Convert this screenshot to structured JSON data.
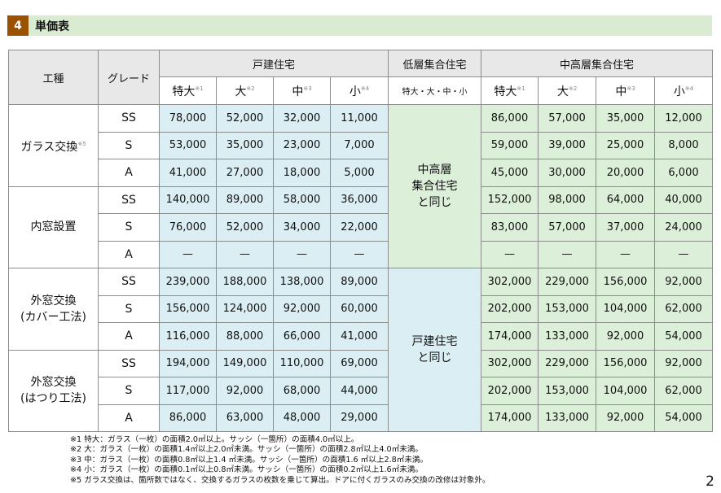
{
  "section": {
    "number": "4",
    "title": "単価表"
  },
  "header": {
    "work": "工種",
    "grade": "グレード",
    "detached": "戸建住宅",
    "lowrise": "低層集合住宅",
    "highrise": "中高層集合住宅",
    "lowrise_sizes": "特大・大・中・小",
    "sizes": [
      {
        "label": "特大",
        "note": "※1"
      },
      {
        "label": "大",
        "note": "※2"
      },
      {
        "label": "中",
        "note": "※3"
      },
      {
        "label": "小",
        "note": "※4"
      }
    ]
  },
  "lowrise_notes": [
    "中高層\n集合住宅\nと同じ",
    "戸建住宅\nと同じ"
  ],
  "groups": [
    {
      "name": "ガラス交換",
      "note": "※5",
      "rows": [
        {
          "grade": "SS",
          "detached": [
            "78,000",
            "52,000",
            "32,000",
            "11,000"
          ],
          "highrise": [
            "86,000",
            "57,000",
            "35,000",
            "12,000"
          ]
        },
        {
          "grade": "S",
          "detached": [
            "53,000",
            "35,000",
            "23,000",
            "7,000"
          ],
          "highrise": [
            "59,000",
            "39,000",
            "25,000",
            "8,000"
          ]
        },
        {
          "grade": "A",
          "detached": [
            "41,000",
            "27,000",
            "18,000",
            "5,000"
          ],
          "highrise": [
            "45,000",
            "30,000",
            "20,000",
            "6,000"
          ]
        }
      ]
    },
    {
      "name": "内窓設置",
      "note": "",
      "rows": [
        {
          "grade": "SS",
          "detached": [
            "140,000",
            "89,000",
            "58,000",
            "36,000"
          ],
          "highrise": [
            "152,000",
            "98,000",
            "64,000",
            "40,000"
          ]
        },
        {
          "grade": "S",
          "detached": [
            "76,000",
            "52,000",
            "34,000",
            "22,000"
          ],
          "highrise": [
            "83,000",
            "57,000",
            "37,000",
            "24,000"
          ]
        },
        {
          "grade": "A",
          "detached": [
            "—",
            "—",
            "—",
            "—"
          ],
          "highrise": [
            "—",
            "—",
            "—",
            "—"
          ]
        }
      ]
    },
    {
      "name": "外窓交換\n(カバー工法)",
      "note": "",
      "rows": [
        {
          "grade": "SS",
          "detached": [
            "239,000",
            "188,000",
            "138,000",
            "89,000"
          ],
          "highrise": [
            "302,000",
            "229,000",
            "156,000",
            "92,000"
          ]
        },
        {
          "grade": "S",
          "detached": [
            "156,000",
            "124,000",
            "92,000",
            "60,000"
          ],
          "highrise": [
            "202,000",
            "153,000",
            "104,000",
            "62,000"
          ]
        },
        {
          "grade": "A",
          "detached": [
            "116,000",
            "88,000",
            "66,000",
            "41,000"
          ],
          "highrise": [
            "174,000",
            "133,000",
            "92,000",
            "54,000"
          ]
        }
      ]
    },
    {
      "name": "外窓交換\n(はつり工法)",
      "note": "",
      "rows": [
        {
          "grade": "SS",
          "detached": [
            "194,000",
            "149,000",
            "110,000",
            "69,000"
          ],
          "highrise": [
            "302,000",
            "229,000",
            "156,000",
            "92,000"
          ]
        },
        {
          "grade": "S",
          "detached": [
            "117,000",
            "92,000",
            "68,000",
            "44,000"
          ],
          "highrise": [
            "202,000",
            "153,000",
            "104,000",
            "62,000"
          ]
        },
        {
          "grade": "A",
          "detached": [
            "86,000",
            "63,000",
            "48,000",
            "29,000"
          ],
          "highrise": [
            "174,000",
            "133,000",
            "92,000",
            "54,000"
          ]
        }
      ]
    }
  ],
  "footnotes": [
    "※1 特大：ガラス（一枚）の面積2.0㎡以上。サッシ（一箇所）の面積4.0㎡以上。",
    "※2 大：ガラス（一枚）の面積1.4㎡以上2.0㎡未満。サッシ（一箇所）の面積2.8㎡以上4.0㎡未満。",
    "※3 中：ガラス（一枚）の面積0.8㎡以上1.4 ㎡未満。サッシ（一箇所）の面積1.6 ㎡以上2.8㎡未満。",
    "※4 小：ガラス（一枚）の面積0.1㎡以上0.8㎡未満。サッシ（一箇所）の面積0.2㎡以上1.6㎡未満。",
    "※5 ガラス交換は、箇所数ではなく、交換するガラスの枚数を乗じて算出。ドアに付くガラスのみ交換の改修は対象外。"
  ],
  "page_number": "2",
  "colors": {
    "section_badge": "#9a5200",
    "section_bar": "#d9ecd2",
    "detached_cells": "#dbeef4",
    "highrise_cells": "#dcefd8",
    "header": "#e8e8e8"
  }
}
